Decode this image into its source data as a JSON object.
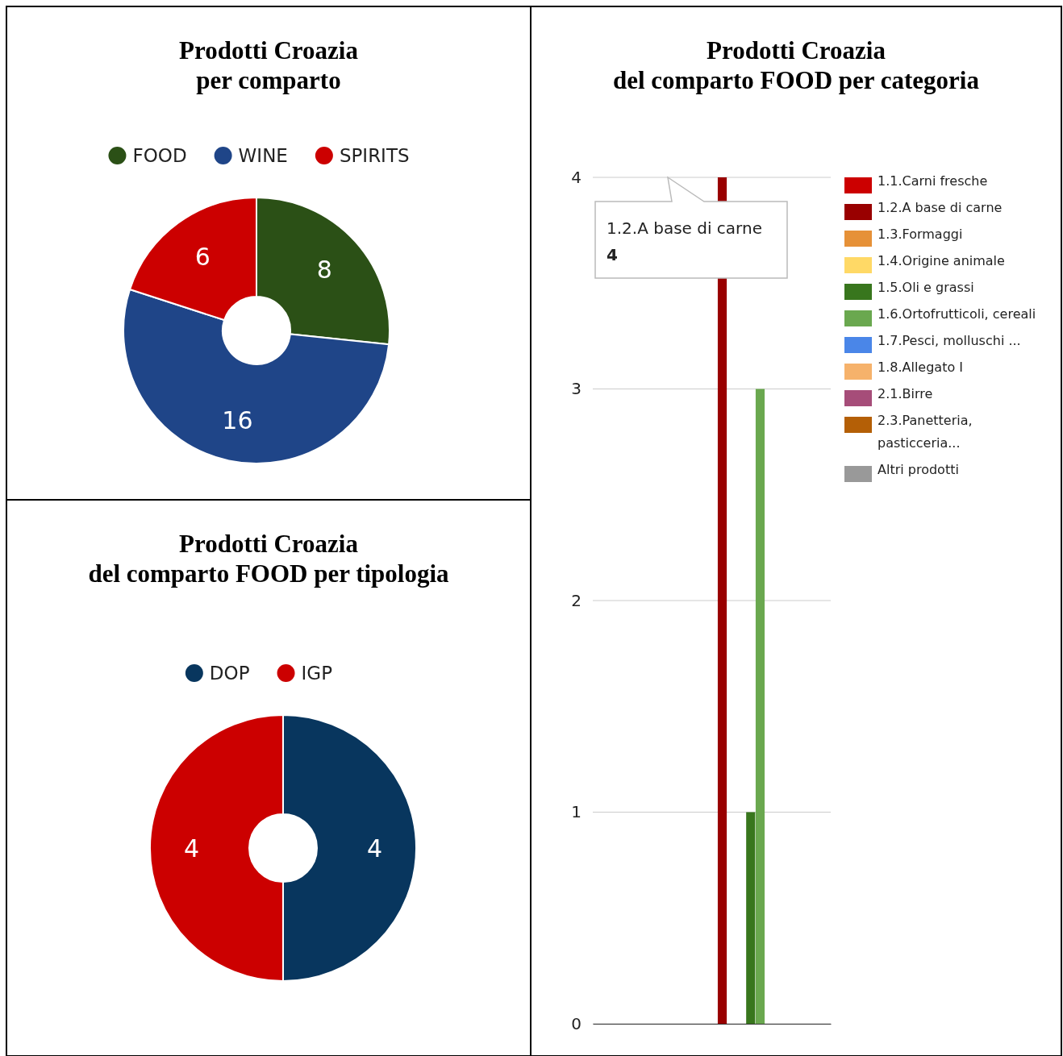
{
  "chart_data": [
    {
      "type": "donut",
      "title": "Prodotti Croazia\nper comparto",
      "categories": [
        "FOOD",
        "WINE",
        "SPIRITS"
      ],
      "values": [
        8,
        16,
        6
      ],
      "colors": [
        "#2b5016",
        "#1f4588",
        "#cc0000"
      ],
      "legend": "top",
      "data_labels": true
    },
    {
      "type": "bar",
      "title": "Prodotti Croazia\ndel comparto FOOD per categoria",
      "categories": [
        null
      ],
      "series": [
        {
          "name": "1.1.Carni fresche",
          "color": "#cc0000",
          "values": [
            0
          ]
        },
        {
          "name": "1.2.A base di carne",
          "color": "#990000",
          "values": [
            4
          ]
        },
        {
          "name": "1.3.Formaggi",
          "color": "#e69138",
          "values": [
            0
          ]
        },
        {
          "name": "1.4.Origine animale",
          "color": "#ffd966",
          "values": [
            0
          ]
        },
        {
          "name": "1.5.Oli e grassi",
          "color": "#38761d",
          "values": [
            1
          ]
        },
        {
          "name": "1.6.Ortofrutticoli, cereali",
          "color": "#6aa84f",
          "values": [
            3
          ]
        },
        {
          "name": "1.7.Pesci, molluschi ...",
          "color": "#4a86e8",
          "values": [
            0
          ]
        },
        {
          "name": "1.8.Allegato I",
          "color": "#f6b26b",
          "values": [
            0
          ]
        },
        {
          "name": "2.1.Birre",
          "color": "#a64d79",
          "values": [
            0
          ]
        },
        {
          "name": "2.3.Panetteria, pasticceria...",
          "color": "#b45f06",
          "values": [
            0
          ]
        },
        {
          "name": "Altri prodotti",
          "color": "#999999",
          "values": [
            0
          ]
        }
      ],
      "ylim": [
        0,
        4
      ],
      "yticks": [
        0,
        1,
        2,
        3,
        4
      ],
      "grid": "y",
      "tick_labels": "y",
      "legend": "right",
      "annotations": [
        "1.2.A base di carne\n4"
      ]
    },
    {
      "type": "donut",
      "title": "Prodotti Croazia\ndel comparto FOOD per tipologia",
      "categories": [
        "DOP",
        "IGP"
      ],
      "values": [
        4,
        4
      ],
      "colors": [
        "#08365e",
        "#cc0000"
      ],
      "legend": "top",
      "data_labels": true
    }
  ]
}
